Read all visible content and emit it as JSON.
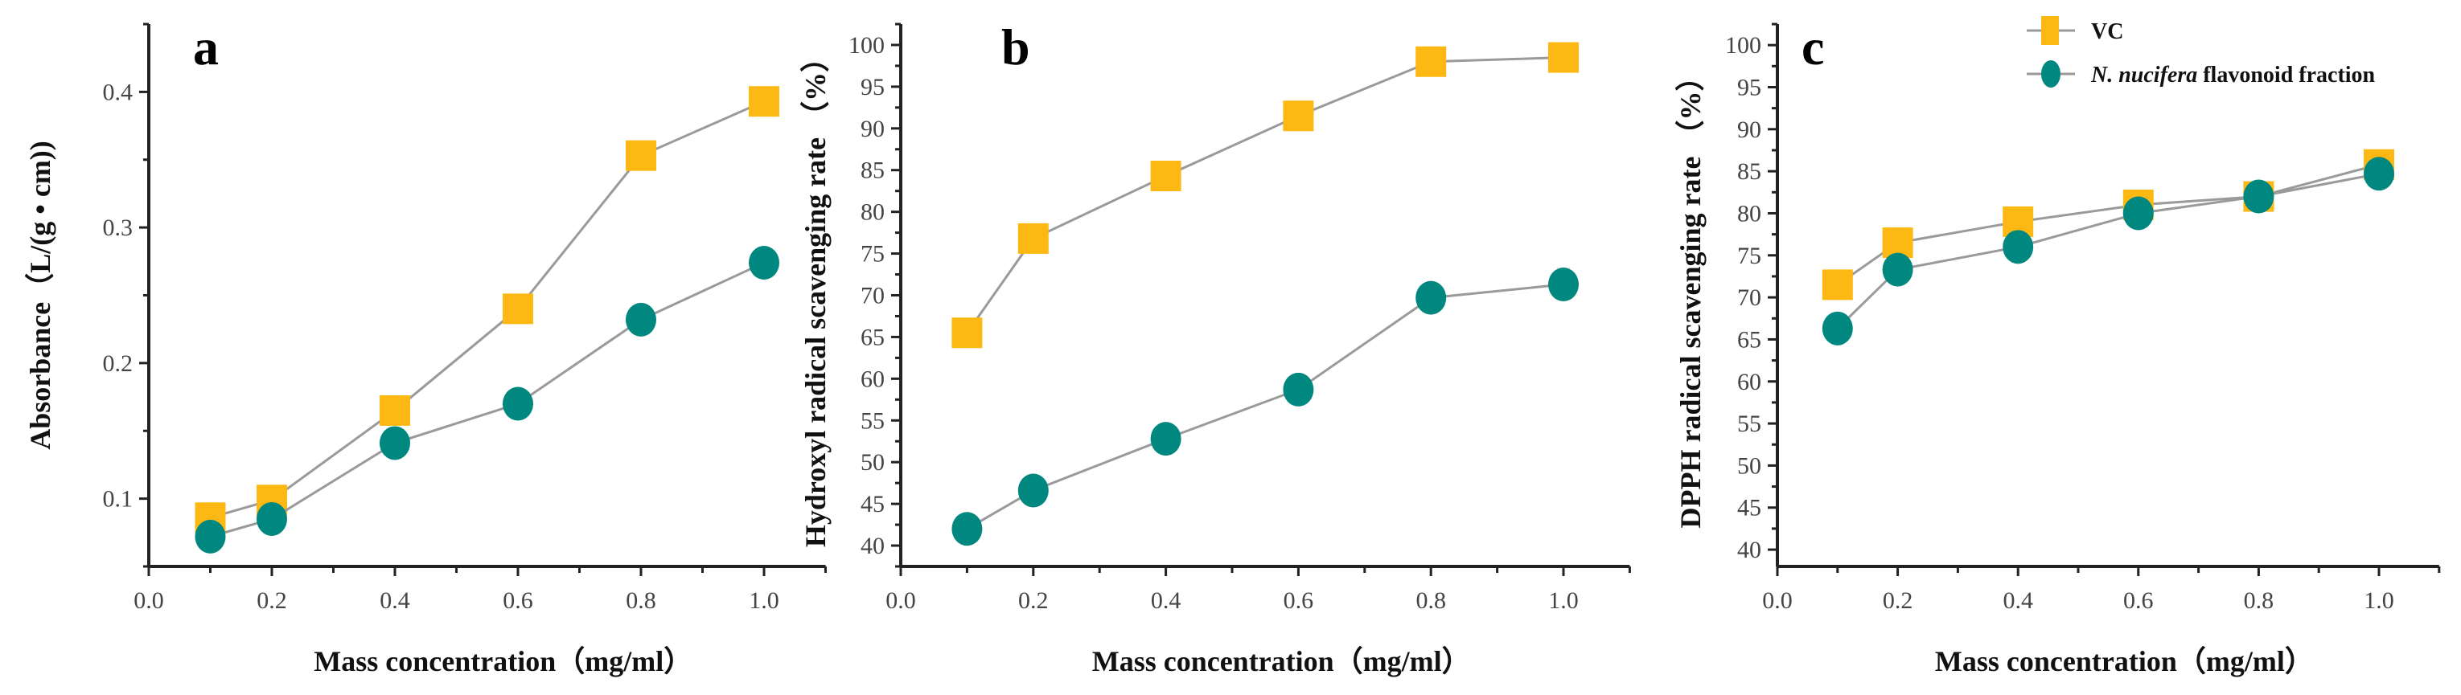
{
  "colors": {
    "vc": "#FDB813",
    "nnff": "#00877F",
    "line": "#9a9a9a",
    "axis": "#222222"
  },
  "legend": {
    "vc": "VC",
    "nnff_italic": "N. nucifera",
    "nnff_rest": " flavonoid fraction"
  },
  "chart_data": [
    {
      "type": "line",
      "panel": "a",
      "xlabel": "Mass concentration（mg/ml）",
      "ylabel": "Absorbance（L/(g • cm))",
      "xlim": [
        0,
        1.1
      ],
      "ylim": [
        0.05,
        0.45
      ],
      "xticks": [
        "0.0",
        "0.2",
        "0.4",
        "0.6",
        "0.8",
        "1.0"
      ],
      "yticks": [
        "0.1",
        "0.2",
        "0.3",
        "0.4"
      ],
      "x": [
        0.1,
        0.2,
        0.4,
        0.6,
        0.8,
        1.0
      ],
      "series": [
        {
          "name": "VC",
          "marker": "square",
          "values": [
            0.086,
            0.099,
            0.165,
            0.24,
            0.353,
            0.393
          ]
        },
        {
          "name": "N. nucifera flavonoid fraction",
          "marker": "circle",
          "values": [
            0.072,
            0.085,
            0.141,
            0.17,
            0.232,
            0.274
          ]
        }
      ]
    },
    {
      "type": "line",
      "panel": "b",
      "xlabel": "Mass concentration（mg/ml）",
      "ylabel": "Hydroxyl radical scavenging rate （%）",
      "xlim": [
        0,
        1.1
      ],
      "ylim": [
        37.5,
        102.5
      ],
      "xticks": [
        "0.0",
        "0.2",
        "0.4",
        "0.6",
        "0.8",
        "1.0"
      ],
      "yticks": [
        "40",
        "45",
        "50",
        "55",
        "60",
        "65",
        "70",
        "75",
        "80",
        "85",
        "90",
        "95",
        "100"
      ],
      "x": [
        0.1,
        0.2,
        0.4,
        0.6,
        0.8,
        1.0
      ],
      "series": [
        {
          "name": "VC",
          "marker": "square",
          "values": [
            65.5,
            76.8,
            84.3,
            91.5,
            98.0,
            98.5
          ]
        },
        {
          "name": "N. nucifera flavonoid fraction",
          "marker": "circle",
          "values": [
            42.0,
            46.6,
            52.8,
            58.7,
            69.7,
            71.3
          ]
        }
      ]
    },
    {
      "type": "line",
      "panel": "c",
      "xlabel": "Mass concentration（mg/ml）",
      "ylabel": "DPPH radical scavenging rate （%）",
      "xlim": [
        0,
        1.1
      ],
      "ylim": [
        38,
        102.5
      ],
      "xticks": [
        "0.0",
        "0.2",
        "0.4",
        "0.6",
        "0.8",
        "1.0"
      ],
      "yticks": [
        "40",
        "45",
        "50",
        "55",
        "60",
        "65",
        "70",
        "75",
        "80",
        "85",
        "90",
        "95",
        "100"
      ],
      "x": [
        0.1,
        0.2,
        0.4,
        0.6,
        0.8,
        1.0
      ],
      "legend_position": "top-right",
      "series": [
        {
          "name": "VC",
          "marker": "square",
          "values": [
            71.5,
            76.5,
            79.0,
            81.0,
            82.0,
            85.8
          ]
        },
        {
          "name": "N. nucifera flavonoid fraction",
          "marker": "circle",
          "values": [
            66.3,
            73.3,
            76.0,
            80.0,
            82.0,
            84.7
          ]
        }
      ]
    }
  ]
}
